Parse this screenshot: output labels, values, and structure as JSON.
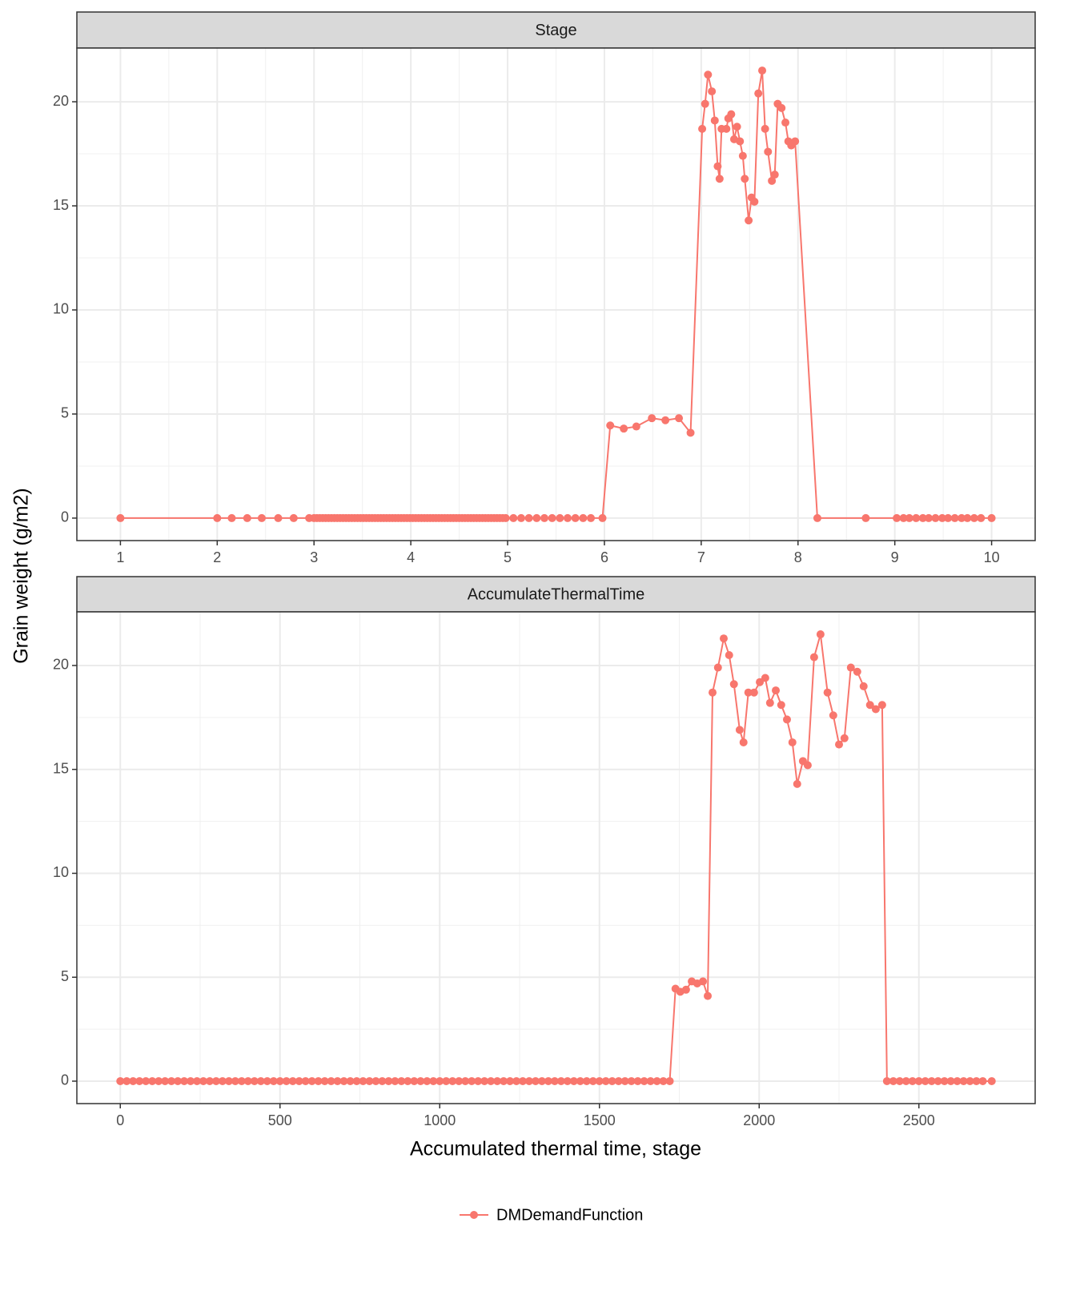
{
  "figure": {
    "ylabel": "Grain weight (g/m2)",
    "xlabel": "Accumulated thermal time, stage",
    "legend": "bottom"
  },
  "chart_data": [
    {
      "type": "line",
      "title": "Stage",
      "x": [
        1,
        2,
        2.15,
        2.31,
        2.46,
        2.63,
        2.79,
        2.95,
        3,
        3.03,
        3.06,
        3.09,
        3.12,
        3.15,
        3.18,
        3.21,
        3.24,
        3.27,
        3.3,
        3.33,
        3.36,
        3.39,
        3.42,
        3.45,
        3.48,
        3.51,
        3.54,
        3.57,
        3.6,
        3.63,
        3.66,
        3.69,
        3.72,
        3.75,
        3.78,
        3.81,
        3.84,
        3.87,
        3.9,
        3.93,
        3.96,
        3.99,
        4.02,
        4.05,
        4.08,
        4.11,
        4.14,
        4.17,
        4.2,
        4.23,
        4.26,
        4.29,
        4.32,
        4.35,
        4.38,
        4.41,
        4.44,
        4.47,
        4.5,
        4.53,
        4.56,
        4.59,
        4.62,
        4.65,
        4.68,
        4.71,
        4.74,
        4.77,
        4.8,
        4.83,
        4.86,
        4.89,
        4.92,
        4.95,
        4.98,
        5.06,
        5.14,
        5.22,
        5.3,
        5.38,
        5.46,
        5.54,
        5.62,
        5.7,
        5.78,
        5.86,
        5.98,
        6.06,
        6.2,
        6.33,
        6.49,
        6.63,
        6.77,
        6.89,
        7.01,
        7.04,
        7.07,
        7.11,
        7.14,
        7.17,
        7.19,
        7.21,
        7.26,
        7.28,
        7.31,
        7.34,
        7.37,
        7.4,
        7.43,
        7.45,
        7.49,
        7.52,
        7.55,
        7.59,
        7.63,
        7.66,
        7.69,
        7.73,
        7.76,
        7.79,
        7.83,
        7.87,
        7.9,
        7.93,
        7.97,
        8.2,
        8.7,
        9.02,
        9.09,
        9.15,
        9.22,
        9.29,
        9.35,
        9.42,
        9.49,
        9.55,
        9.62,
        9.69,
        9.75,
        9.82,
        9.89,
        10
      ],
      "series": [
        {
          "name": "DMDemandFunction",
          "color": "#f8766d",
          "values": [
            0,
            0,
            0,
            0,
            0,
            0,
            0,
            0,
            0,
            0,
            0,
            0,
            0,
            0,
            0,
            0,
            0,
            0,
            0,
            0,
            0,
            0,
            0,
            0,
            0,
            0,
            0,
            0,
            0,
            0,
            0,
            0,
            0,
            0,
            0,
            0,
            0,
            0,
            0,
            0,
            0,
            0,
            0,
            0,
            0,
            0,
            0,
            0,
            0,
            0,
            0,
            0,
            0,
            0,
            0,
            0,
            0,
            0,
            0,
            0,
            0,
            0,
            0,
            0,
            0,
            0,
            0,
            0,
            0,
            0,
            0,
            0,
            0,
            0,
            0,
            0,
            0,
            0,
            0,
            0,
            0,
            0,
            0,
            0,
            0,
            0,
            0,
            4.45,
            4.3,
            4.4,
            4.8,
            4.7,
            4.8,
            4.1,
            18.7,
            19.9,
            21.3,
            20.5,
            19.1,
            16.9,
            16.3,
            18.7,
            18.7,
            19.2,
            19.4,
            18.2,
            18.8,
            18.1,
            17.4,
            16.3,
            14.3,
            15.4,
            15.2,
            20.4,
            21.5,
            18.7,
            17.6,
            16.2,
            16.5,
            19.9,
            19.7,
            19,
            18.1,
            17.9,
            18.1,
            0,
            0,
            0,
            0,
            0,
            0,
            0,
            0,
            0,
            0,
            0,
            0,
            0,
            0,
            0,
            0,
            0
          ]
        }
      ],
      "xlim": [
        0.55,
        10.45
      ],
      "ylim": [
        -1.08,
        22.58
      ],
      "xticks": [
        1,
        2,
        3,
        4,
        5,
        6,
        7,
        8,
        9,
        10
      ],
      "yticks": [
        0,
        5,
        10,
        15,
        20
      ],
      "grid": true,
      "minor_grid": true
    },
    {
      "type": "line",
      "title": "AccumulateThermalTime",
      "x": [
        0,
        20,
        40,
        60,
        80,
        100,
        120,
        140,
        160,
        180,
        200,
        220,
        240,
        260,
        280,
        300,
        320,
        340,
        360,
        380,
        400,
        420,
        440,
        460,
        480,
        500,
        520,
        540,
        560,
        580,
        600,
        620,
        640,
        660,
        680,
        700,
        720,
        740,
        760,
        780,
        800,
        820,
        840,
        860,
        880,
        900,
        920,
        940,
        960,
        980,
        1000,
        1020,
        1040,
        1060,
        1080,
        1100,
        1120,
        1140,
        1160,
        1180,
        1200,
        1220,
        1240,
        1260,
        1280,
        1300,
        1320,
        1340,
        1360,
        1380,
        1400,
        1420,
        1440,
        1460,
        1480,
        1500,
        1520,
        1540,
        1560,
        1580,
        1600,
        1620,
        1640,
        1660,
        1680,
        1700,
        1720,
        1738,
        1753,
        1771,
        1789,
        1806,
        1824,
        1839,
        1854,
        1871,
        1889,
        1906,
        1921,
        1939,
        1951,
        1966,
        1984,
        2002,
        2019,
        2034,
        2052,
        2069,
        2087,
        2104,
        2119,
        2137,
        2152,
        2172,
        2192,
        2214,
        2232,
        2250,
        2267,
        2287,
        2307,
        2327,
        2347,
        2365,
        2385,
        2400,
        2420,
        2440,
        2460,
        2480,
        2500,
        2520,
        2540,
        2560,
        2580,
        2600,
        2620,
        2640,
        2660,
        2680,
        2700,
        2728
      ],
      "series": [
        {
          "name": "DMDemandFunction",
          "color": "#f8766d",
          "values": [
            0,
            0,
            0,
            0,
            0,
            0,
            0,
            0,
            0,
            0,
            0,
            0,
            0,
            0,
            0,
            0,
            0,
            0,
            0,
            0,
            0,
            0,
            0,
            0,
            0,
            0,
            0,
            0,
            0,
            0,
            0,
            0,
            0,
            0,
            0,
            0,
            0,
            0,
            0,
            0,
            0,
            0,
            0,
            0,
            0,
            0,
            0,
            0,
            0,
            0,
            0,
            0,
            0,
            0,
            0,
            0,
            0,
            0,
            0,
            0,
            0,
            0,
            0,
            0,
            0,
            0,
            0,
            0,
            0,
            0,
            0,
            0,
            0,
            0,
            0,
            0,
            0,
            0,
            0,
            0,
            0,
            0,
            0,
            0,
            0,
            0,
            0,
            4.45,
            4.3,
            4.4,
            4.8,
            4.7,
            4.8,
            4.1,
            18.7,
            19.9,
            21.3,
            20.5,
            19.1,
            16.9,
            16.3,
            18.7,
            18.7,
            19.2,
            19.4,
            18.2,
            18.8,
            18.1,
            17.4,
            16.3,
            14.3,
            15.4,
            15.2,
            20.4,
            21.5,
            18.7,
            17.6,
            16.2,
            16.5,
            19.9,
            19.7,
            19,
            18.1,
            17.9,
            18.1,
            0,
            0,
            0,
            0,
            0,
            0,
            0,
            0,
            0,
            0,
            0,
            0,
            0,
            0,
            0,
            0,
            0
          ]
        }
      ],
      "xlim": [
        -136,
        2864
      ],
      "ylim": [
        -1.08,
        22.58
      ],
      "xticks": [
        0,
        500,
        1000,
        1500,
        2000,
        2500
      ],
      "yticks": [
        0,
        5,
        10,
        15,
        20
      ],
      "grid": true,
      "minor_grid": true
    }
  ]
}
